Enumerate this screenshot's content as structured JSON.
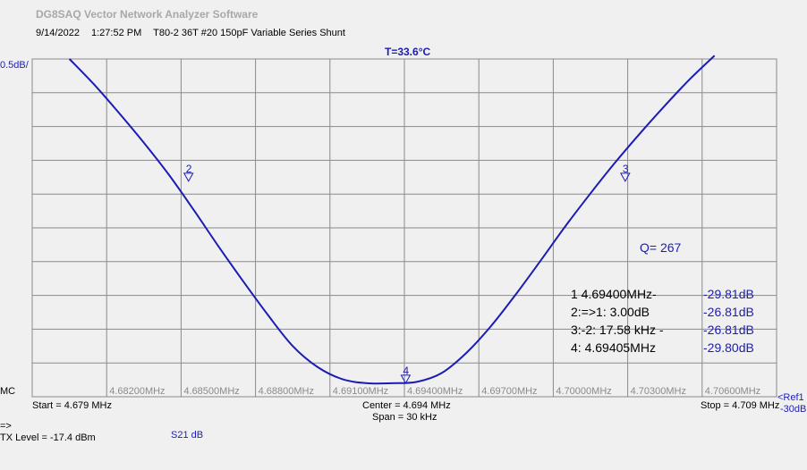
{
  "app_title": "DG8SAQ Vector Network Analyzer Software",
  "info": {
    "date": "9/14/2022",
    "time": "1:27:52 PM",
    "description": "T80-2 36T #20 150pF Variable Series  Shunt"
  },
  "temperature": "T=33.6°C",
  "scale_label": "0.5dB/",
  "mc_label": "MC",
  "start_label": "Start = 4.679 MHz",
  "center_label": "Center = 4.694 MHz",
  "span_label": "Span = 30 kHz",
  "stop_label": "Stop = 4.709 MHz",
  "ref_label": [
    "<Ref1",
    "-30dB"
  ],
  "arrow_label": "=>",
  "tx_level": "TX Level = -17.4 dBm",
  "trace_label": "S21  dB",
  "q_label": "Q= 267",
  "marker_table": [
    {
      "left": "1     4.69400MHz-",
      "right": "-29.81dB"
    },
    {
      "left": "2:=>1:  3.00dB",
      "right": "-26.81dB"
    },
    {
      "left": "3:-2:  17.58 kHz   -",
      "right": "-26.81dB"
    },
    {
      "left": "4:    4.69405MHz",
      "right": "-29.80dB"
    }
  ],
  "colors": {
    "trace": "#1c1cb4",
    "grid": "#8a8a8a",
    "background": "#f0f0f0"
  },
  "chart_data": {
    "type": "line",
    "xlim": [
      4.679,
      4.709
    ],
    "ylim": [
      -30,
      -25
    ],
    "x_unit": "MHz",
    "y_unit": "dB",
    "y_per_div": 0.5,
    "grid": true,
    "x_ticks": [
      "4.68200MHz",
      "4.68500MHz",
      "4.68800MHz",
      "4.69100MHz",
      "4.69400MHz",
      "4.69700MHz",
      "4.70000MHz",
      "4.70300MHz",
      "4.70600MHz"
    ],
    "series": [
      {
        "x": [
          4.6805,
          4.6815,
          4.6825,
          4.6835,
          4.6845,
          4.6855,
          4.6865,
          4.6875,
          4.6885,
          4.6895,
          4.6905,
          4.6915,
          4.6925,
          4.6935,
          4.6945,
          4.6955,
          4.6965,
          4.6975,
          4.6985,
          4.6995,
          4.7005,
          4.7015,
          4.7025,
          4.7035,
          4.7045,
          4.7055,
          4.7065
        ],
        "y": [
          -25.0,
          -25.38,
          -25.8,
          -26.24,
          -26.71,
          -27.23,
          -27.77,
          -28.29,
          -28.79,
          -29.25,
          -29.56,
          -29.74,
          -29.8,
          -29.8,
          -29.78,
          -29.65,
          -29.35,
          -28.95,
          -28.48,
          -27.98,
          -27.47,
          -26.99,
          -26.53,
          -26.1,
          -25.69,
          -25.3,
          -24.95
        ]
      }
    ],
    "markers": [
      {
        "label": "2",
        "x": 4.6853,
        "y": -26.81
      },
      {
        "label": "3",
        "x": 4.7029,
        "y": -26.81
      },
      {
        "label": "4",
        "x": 4.69405,
        "y": -29.8
      }
    ]
  }
}
